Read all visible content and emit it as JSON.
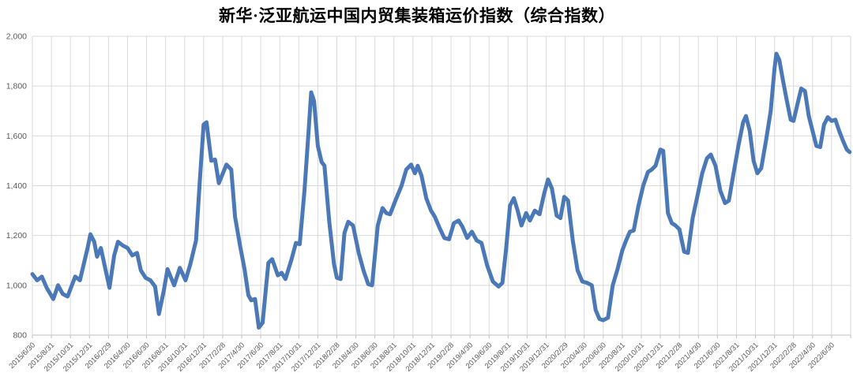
{
  "title": "新华·泛亚航运中国内贸集装箱运价指数（综合指数）",
  "chart_data": {
    "type": "line",
    "title": "新华·泛亚航运中国内贸集装箱运价指数（综合指数）",
    "legend": [],
    "grid": true,
    "line_color": "#4b79b7",
    "grid_color": "#d9d9d9",
    "axis_line_color": "#bfbfbf",
    "tick_text_color": "#595959",
    "ylim": [
      800,
      2000
    ],
    "ytick_interval": 200,
    "y_tick_labels": [
      "800",
      "1,000",
      "1,200",
      "1,400",
      "1,600",
      "1,800",
      "2,000"
    ],
    "x_tick_labels": [
      "2015/6/30",
      "2015/8/31",
      "2015/10/31",
      "2015/12/31",
      "2016/2/29",
      "2016/4/30",
      "2016/6/30",
      "2016/8/31",
      "2016/10/31",
      "2016/12/31",
      "2017/2/28",
      "2017/4/30",
      "2017/6/30",
      "2017/8/31",
      "2017/10/31",
      "2017/12/31",
      "2018/2/28",
      "2018/4/30",
      "2018/6/30",
      "2018/8/31",
      "2018/10/31",
      "2018/12/31",
      "2019/2/28",
      "2019/4/30",
      "2019/6/30",
      "2019/8/31",
      "2019/10/31",
      "2019/12/31",
      "2020/2/29",
      "2020/4/30",
      "2020/6/30",
      "2020/8/31",
      "2020/10/31",
      "2020/12/31",
      "2021/2/28",
      "2021/4/30",
      "2021/6/30",
      "2021/8/31",
      "2021/10/31",
      "2021/12/31",
      "2022/2/28",
      "2022/4/30",
      "2022/6/30"
    ],
    "x_months_per_tick": 2,
    "x_axis_start": "2015/6/30",
    "points_unit": "[months since 2015/6/30, index value]",
    "points": [
      [
        0,
        1045
      ],
      [
        0.5,
        1020
      ],
      [
        1,
        1035
      ],
      [
        1.5,
        990
      ],
      [
        2.2,
        945
      ],
      [
        2.7,
        1000
      ],
      [
        3.2,
        965
      ],
      [
        3.7,
        955
      ],
      [
        4.5,
        1035
      ],
      [
        5,
        1020
      ],
      [
        5.8,
        1150
      ],
      [
        6.1,
        1205
      ],
      [
        6.5,
        1175
      ],
      [
        6.8,
        1115
      ],
      [
        7.2,
        1150
      ],
      [
        7.7,
        1060
      ],
      [
        8.1,
        990
      ],
      [
        8.6,
        1120
      ],
      [
        9,
        1175
      ],
      [
        9.5,
        1160
      ],
      [
        10,
        1150
      ],
      [
        10.5,
        1120
      ],
      [
        11,
        1130
      ],
      [
        11.4,
        1060
      ],
      [
        11.9,
        1030
      ],
      [
        12.4,
        1020
      ],
      [
        12.9,
        995
      ],
      [
        13.3,
        885
      ],
      [
        13.8,
        975
      ],
      [
        14.2,
        1065
      ],
      [
        14.9,
        1000
      ],
      [
        15.5,
        1070
      ],
      [
        16.1,
        1020
      ],
      [
        16.6,
        1085
      ],
      [
        17.2,
        1180
      ],
      [
        17.6,
        1420
      ],
      [
        18,
        1645
      ],
      [
        18.3,
        1655
      ],
      [
        18.8,
        1500
      ],
      [
        19.2,
        1505
      ],
      [
        19.6,
        1410
      ],
      [
        20.4,
        1485
      ],
      [
        20.9,
        1465
      ],
      [
        21.3,
        1275
      ],
      [
        21.8,
        1165
      ],
      [
        22.3,
        1065
      ],
      [
        22.7,
        960
      ],
      [
        23,
        940
      ],
      [
        23.4,
        945
      ],
      [
        23.8,
        830
      ],
      [
        24.2,
        850
      ],
      [
        24.8,
        1090
      ],
      [
        25.2,
        1105
      ],
      [
        25.8,
        1040
      ],
      [
        26.2,
        1050
      ],
      [
        26.6,
        1025
      ],
      [
        27.2,
        1100
      ],
      [
        27.7,
        1170
      ],
      [
        28.1,
        1165
      ],
      [
        28.6,
        1380
      ],
      [
        29,
        1600
      ],
      [
        29.3,
        1775
      ],
      [
        29.6,
        1740
      ],
      [
        30,
        1560
      ],
      [
        30.4,
        1495
      ],
      [
        30.7,
        1480
      ],
      [
        31.2,
        1255
      ],
      [
        31.7,
        1085
      ],
      [
        32,
        1030
      ],
      [
        32.4,
        1025
      ],
      [
        32.8,
        1210
      ],
      [
        33.2,
        1255
      ],
      [
        33.7,
        1240
      ],
      [
        34.3,
        1130
      ],
      [
        34.8,
        1060
      ],
      [
        35.3,
        1005
      ],
      [
        35.7,
        1000
      ],
      [
        36.3,
        1240
      ],
      [
        36.8,
        1310
      ],
      [
        37.2,
        1290
      ],
      [
        37.6,
        1285
      ],
      [
        38.2,
        1345
      ],
      [
        38.8,
        1400
      ],
      [
        39.3,
        1465
      ],
      [
        39.8,
        1485
      ],
      [
        40.2,
        1450
      ],
      [
        40.5,
        1480
      ],
      [
        40.9,
        1440
      ],
      [
        41.4,
        1350
      ],
      [
        41.9,
        1300
      ],
      [
        42.3,
        1275
      ],
      [
        42.8,
        1230
      ],
      [
        43.3,
        1190
      ],
      [
        43.8,
        1185
      ],
      [
        44.3,
        1250
      ],
      [
        44.8,
        1260
      ],
      [
        45.2,
        1235
      ],
      [
        45.7,
        1190
      ],
      [
        46.2,
        1215
      ],
      [
        46.7,
        1180
      ],
      [
        47.2,
        1170
      ],
      [
        47.8,
        1080
      ],
      [
        48.4,
        1015
      ],
      [
        49,
        995
      ],
      [
        49.4,
        1010
      ],
      [
        49.8,
        1150
      ],
      [
        50.2,
        1320
      ],
      [
        50.6,
        1350
      ],
      [
        51,
        1300
      ],
      [
        51.4,
        1240
      ],
      [
        51.9,
        1290
      ],
      [
        52.3,
        1260
      ],
      [
        52.8,
        1300
      ],
      [
        53.3,
        1285
      ],
      [
        53.8,
        1370
      ],
      [
        54.2,
        1425
      ],
      [
        54.6,
        1390
      ],
      [
        55.1,
        1280
      ],
      [
        55.5,
        1270
      ],
      [
        55.9,
        1355
      ],
      [
        56.3,
        1340
      ],
      [
        56.8,
        1180
      ],
      [
        57.3,
        1060
      ],
      [
        57.8,
        1015
      ],
      [
        58.3,
        1010
      ],
      [
        58.8,
        1000
      ],
      [
        59.2,
        900
      ],
      [
        59.6,
        865
      ],
      [
        60,
        860
      ],
      [
        60.5,
        870
      ],
      [
        61,
        1000
      ],
      [
        61.5,
        1065
      ],
      [
        62,
        1140
      ],
      [
        62.4,
        1180
      ],
      [
        62.8,
        1215
      ],
      [
        63.2,
        1220
      ],
      [
        63.7,
        1320
      ],
      [
        64.2,
        1400
      ],
      [
        64.7,
        1455
      ],
      [
        65.1,
        1465
      ],
      [
        65.5,
        1480
      ],
      [
        66,
        1545
      ],
      [
        66.3,
        1540
      ],
      [
        66.8,
        1290
      ],
      [
        67.2,
        1250
      ],
      [
        67.6,
        1240
      ],
      [
        68,
        1225
      ],
      [
        68.5,
        1135
      ],
      [
        68.9,
        1130
      ],
      [
        69.4,
        1270
      ],
      [
        69.9,
        1360
      ],
      [
        70.4,
        1450
      ],
      [
        70.9,
        1510
      ],
      [
        71.3,
        1525
      ],
      [
        71.8,
        1480
      ],
      [
        72.3,
        1380
      ],
      [
        72.8,
        1330
      ],
      [
        73.2,
        1340
      ],
      [
        73.7,
        1450
      ],
      [
        74.2,
        1560
      ],
      [
        74.7,
        1655
      ],
      [
        75,
        1680
      ],
      [
        75.4,
        1620
      ],
      [
        75.8,
        1500
      ],
      [
        76.2,
        1450
      ],
      [
        76.6,
        1470
      ],
      [
        77.1,
        1580
      ],
      [
        77.6,
        1700
      ],
      [
        78,
        1870
      ],
      [
        78.2,
        1930
      ],
      [
        78.5,
        1905
      ],
      [
        78.9,
        1820
      ],
      [
        79.3,
        1740
      ],
      [
        79.7,
        1665
      ],
      [
        80,
        1660
      ],
      [
        80.4,
        1725
      ],
      [
        80.8,
        1790
      ],
      [
        81.2,
        1780
      ],
      [
        81.6,
        1680
      ],
      [
        82,
        1620
      ],
      [
        82.4,
        1560
      ],
      [
        82.8,
        1555
      ],
      [
        83.2,
        1645
      ],
      [
        83.6,
        1675
      ],
      [
        84,
        1660
      ],
      [
        84.4,
        1665
      ],
      [
        84.8,
        1620
      ],
      [
        85.2,
        1580
      ],
      [
        85.6,
        1545
      ],
      [
        85.9,
        1535
      ]
    ]
  }
}
